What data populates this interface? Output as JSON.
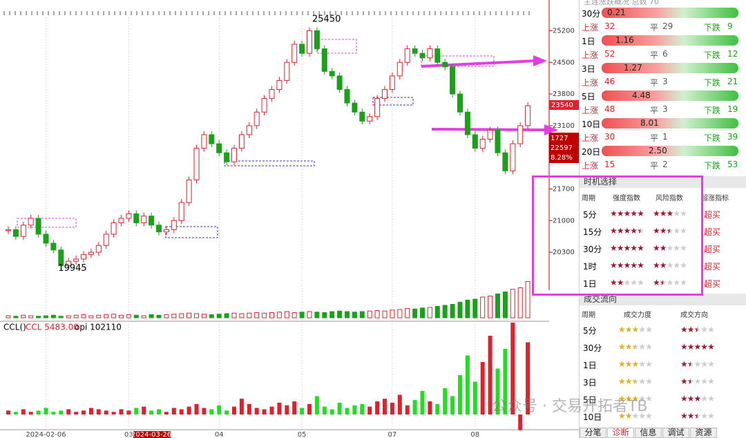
{
  "main_chart": {
    "yticks": [
      25200,
      24500,
      23800,
      23100,
      21700,
      21000,
      20300
    ],
    "ylim": [
      18850,
      25650
    ],
    "closes": [
      20800,
      20650,
      20900,
      21050,
      20700,
      20500,
      20350,
      20000,
      20100,
      20150,
      20250,
      20300,
      20450,
      20700,
      20950,
      21050,
      21150,
      20950,
      21100,
      20900,
      20750,
      20800,
      21000,
      21400,
      21900,
      22600,
      22900,
      22700,
      22500,
      22300,
      22600,
      22900,
      23100,
      23400,
      23700,
      23900,
      24100,
      24500,
      24900,
      24700,
      25200,
      24800,
      24300,
      24200,
      23900,
      23600,
      23400,
      23200,
      23300,
      23700,
      23900,
      24200,
      24500,
      24800,
      24700,
      24600,
      24800,
      24500,
      24400,
      23800,
      23400,
      22900,
      22600,
      22800,
      23000,
      22500,
      22100,
      22700,
      23100,
      23540
    ],
    "volume": [
      4,
      3,
      5,
      4,
      3,
      4,
      5,
      3,
      4,
      5,
      6,
      4,
      5,
      6,
      7,
      5,
      6,
      5,
      4,
      6,
      5,
      6,
      7,
      8,
      9,
      8,
      7,
      6,
      7,
      8,
      9,
      8,
      9,
      10,
      9,
      10,
      11,
      12,
      10,
      11,
      12,
      11,
      10,
      12,
      13,
      12,
      11,
      12,
      13,
      14,
      13,
      15,
      16,
      18,
      17,
      19,
      20,
      22,
      24,
      26,
      30,
      34,
      36,
      40,
      42,
      46,
      50,
      55,
      58,
      70
    ],
    "high_label": 25450,
    "low_label": 19945,
    "last_price": "23540",
    "readout": [
      "1727",
      "22597",
      "8.28%"
    ],
    "x_labels": [
      "2024-02-06",
      "03",
      "2024-03-26",
      "04",
      "05",
      "07",
      "08"
    ]
  },
  "sub_chart": {
    "label": [
      "CCL()",
      "CCL 5483.00",
      "opi 102110"
    ],
    "ccl": [
      3,
      2,
      4,
      2,
      3,
      5,
      2,
      3,
      4,
      2,
      3,
      5,
      4,
      3,
      2,
      4,
      3,
      5,
      6,
      3,
      4,
      2,
      5,
      4,
      6,
      8,
      5,
      4,
      7,
      3,
      6,
      12,
      8,
      5,
      4,
      6,
      9,
      7,
      10,
      5,
      8,
      14,
      6,
      4,
      9,
      5,
      7,
      8,
      6,
      10,
      12,
      9,
      15,
      7,
      11,
      18,
      10,
      8,
      20,
      14,
      30,
      45,
      25,
      40,
      60,
      35,
      50,
      70,
      -12,
      55
    ]
  },
  "breadth": {
    "title": "主连涨跌概况 总数 70",
    "up": "上涨",
    "flat": "平",
    "down": "下跌",
    "rows": [
      {
        "period": "30分",
        "value": "0.21",
        "up": 32,
        "flat": 29,
        "down": 9
      },
      {
        "period": "1日",
        "value": "1.16",
        "up": 52,
        "flat": 6,
        "down": 12
      },
      {
        "period": "3日",
        "value": "1.27",
        "up": 46,
        "flat": 3,
        "down": 21
      },
      {
        "period": "5日",
        "value": "4.48",
        "up": 48,
        "flat": 3,
        "down": 19
      },
      {
        "period": "10日",
        "value": "8.01",
        "up": 30,
        "flat": 1,
        "down": 39
      },
      {
        "period": "20日",
        "value": "2.50",
        "up": 15,
        "flat": 2,
        "down": 53
      }
    ]
  },
  "timing": {
    "title": "时机选择",
    "headers": [
      "周期",
      "强度指数",
      "风险指数",
      "超涨指标"
    ],
    "rows": [
      {
        "period": "5分",
        "strength": 5,
        "risk": 3,
        "signal": "超买"
      },
      {
        "period": "15分",
        "strength": 4.5,
        "risk": 2.5,
        "signal": "超买"
      },
      {
        "period": "30分",
        "strength": 5,
        "risk": 2,
        "signal": "超买"
      },
      {
        "period": "1时",
        "strength": 5,
        "risk": 2,
        "signal": "超买"
      },
      {
        "period": "1日",
        "strength": 2,
        "risk": 1.5,
        "signal": "超买"
      }
    ]
  },
  "flow": {
    "title": "成交流向",
    "headers": [
      "周期",
      "成交力度",
      "成交方向"
    ],
    "rows": [
      {
        "period": "5分",
        "force": 3,
        "direction": 2.5
      },
      {
        "period": "30分",
        "force": 2.5,
        "direction": 5
      },
      {
        "period": "1日",
        "force": 3,
        "direction": 1.5
      },
      {
        "period": "3日",
        "force": 2.5,
        "direction": 1.5
      },
      {
        "period": "5日",
        "force": 3,
        "direction": 3
      },
      {
        "period": "10日",
        "force": 2,
        "direction": 2.5
      }
    ]
  },
  "tabs": [
    "分笔",
    "诊断",
    "信息",
    "调试",
    "资源"
  ],
  "watermark": "公众号 · 交易开拓者TB"
}
